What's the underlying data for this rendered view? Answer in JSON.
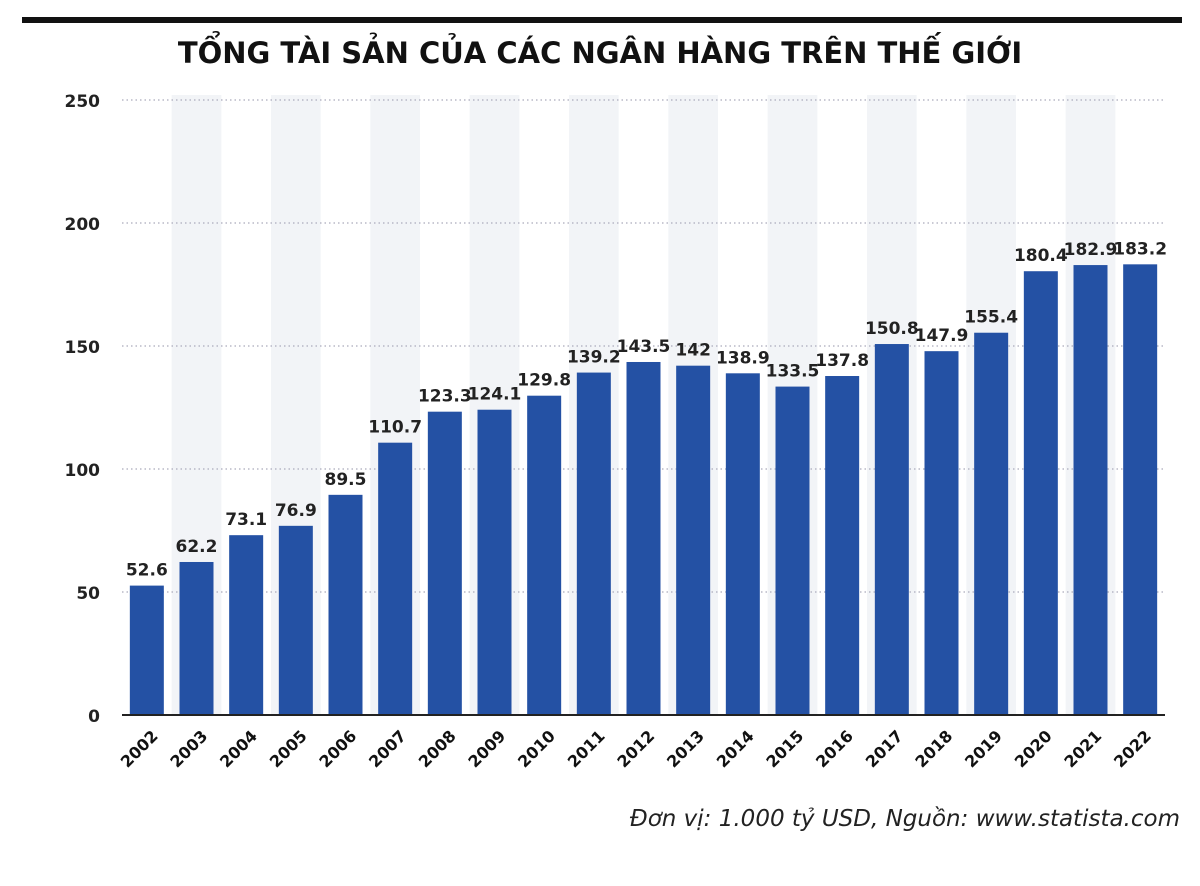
{
  "chart_data": {
    "type": "bar",
    "title": "TỔNG TÀI SẢN CỦA CÁC NGÂN HÀNG TRÊN THẾ GIỚI",
    "categories": [
      "2002",
      "2003",
      "2004",
      "2005",
      "2006",
      "2007",
      "2008",
      "2009",
      "2010",
      "2011",
      "2012",
      "2013",
      "2014",
      "2015",
      "2016",
      "2017",
      "2018",
      "2019",
      "2020",
      "2021",
      "2022"
    ],
    "values": [
      52.6,
      62.2,
      73.1,
      76.9,
      89.5,
      110.7,
      123.3,
      124.1,
      129.8,
      139.2,
      143.5,
      142,
      138.9,
      133.5,
      137.8,
      150.8,
      147.9,
      155.4,
      180.4,
      182.9,
      183.2
    ],
    "labels": [
      "52.6",
      "62.2",
      "73.1",
      "76.9",
      "89.5",
      "110.7",
      "123.3",
      "124.1",
      "129.8",
      "139.2",
      "143.5",
      "142",
      "138.9",
      "133.5",
      "137.8",
      "150.8",
      "147.9",
      "155.4",
      "180.4",
      "182.9",
      "183.2"
    ],
    "yticks": [
      "0",
      "50",
      "100",
      "150",
      "200",
      "250"
    ],
    "ylim": [
      0,
      250
    ],
    "xlabel": "",
    "ylabel": "",
    "grid": "horizontal dotted",
    "bar_color": "#2451a4",
    "stripe_color": "#f2f4f7",
    "footnote": "Đơn vị: 1.000 tỷ USD, Nguồn: www.statista.com"
  }
}
